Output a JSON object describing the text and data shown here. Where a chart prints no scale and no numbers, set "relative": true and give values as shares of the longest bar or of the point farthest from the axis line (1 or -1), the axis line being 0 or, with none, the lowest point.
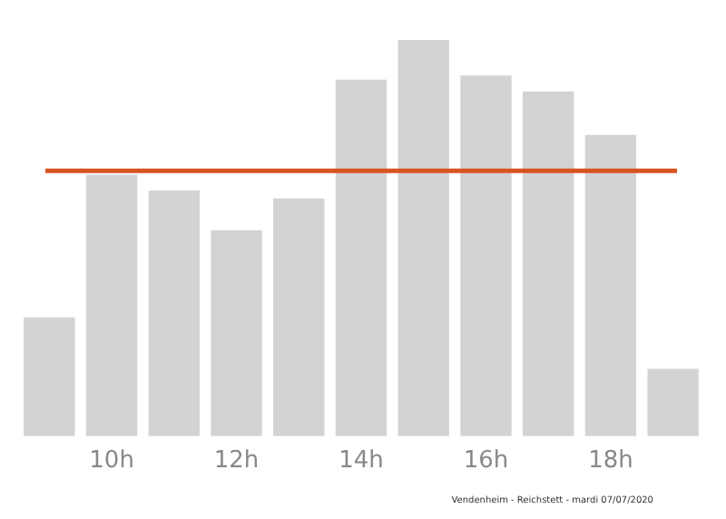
{
  "chart_data": {
    "type": "bar",
    "relative": true,
    "categories": [
      null,
      "10h",
      null,
      "12h",
      null,
      "14h",
      null,
      "16h",
      null,
      "18h",
      null
    ],
    "values": [
      0.3,
      0.66,
      0.62,
      0.52,
      0.6,
      0.9,
      1,
      0.91,
      0.87,
      0.76,
      0.17
    ],
    "color": "#d3d3d3",
    "ref_lines": [
      {
        "axis": "y",
        "value": 0.67,
        "color": "#d9531e"
      }
    ],
    "annotations": [
      "Vendenheim - Reichstett - mardi 07/07/2020"
    ],
    "grid": false,
    "legend": false
  }
}
